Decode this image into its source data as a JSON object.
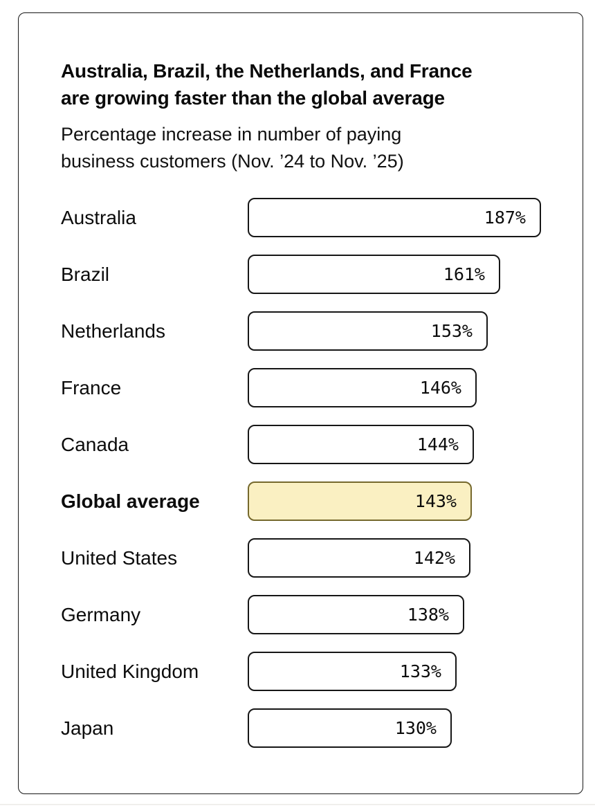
{
  "header": {
    "title": "Australia, Brazil, the Netherlands, and France are growing faster than the global average",
    "title_lines": [
      "Australia, Brazil, the Netherlands, and France",
      "are growing faster than the global average"
    ],
    "subtitle": "Percentage increase in number of paying business customers (Nov. ’24 to Nov. ’25)",
    "subtitle_lines": [
      "Percentage increase in number of paying",
      "business customers (Nov. ’24 to Nov. ’25)"
    ]
  },
  "chart_data": {
    "type": "bar",
    "orientation": "horizontal",
    "title": "Australia, Brazil, the Netherlands, and France are growing faster than the global average",
    "subtitle": "Percentage increase in number of paying business customers (Nov. ’24 to Nov. ’25)",
    "categories": [
      "Australia",
      "Brazil",
      "Netherlands",
      "France",
      "Canada",
      "Global average",
      "United States",
      "Germany",
      "United Kingdom",
      "Japan"
    ],
    "values": [
      187,
      161,
      153,
      146,
      144,
      143,
      142,
      138,
      133,
      130
    ],
    "unit": "%",
    "value_labels": [
      "187%",
      "161%",
      "153%",
      "146%",
      "144%",
      "143%",
      "142%",
      "138%",
      "133%",
      "130%"
    ],
    "highlight_category": "Global average",
    "xlim": [
      0,
      187
    ],
    "grid": false,
    "legend": "none",
    "colors": {
      "bar_fill": "#ffffff",
      "bar_border": "#161616",
      "highlight_fill": "#faf0c2",
      "highlight_border": "#75682c",
      "text": "#0c0c0c"
    }
  },
  "rows": [
    {
      "label": "Australia",
      "value": 187,
      "display": "187%",
      "highlighted": false
    },
    {
      "label": "Brazil",
      "value": 161,
      "display": "161%",
      "highlighted": false
    },
    {
      "label": "Netherlands",
      "value": 153,
      "display": "153%",
      "highlighted": false
    },
    {
      "label": "France",
      "value": 146,
      "display": "146%",
      "highlighted": false
    },
    {
      "label": "Canada",
      "value": 144,
      "display": "144%",
      "highlighted": false
    },
    {
      "label": "Global average",
      "value": 143,
      "display": "143%",
      "highlighted": true
    },
    {
      "label": "United States",
      "value": 142,
      "display": "142%",
      "highlighted": false
    },
    {
      "label": "Germany",
      "value": 138,
      "display": "138%",
      "highlighted": false
    },
    {
      "label": "United Kingdom",
      "value": 133,
      "display": "133%",
      "highlighted": false
    },
    {
      "label": "Japan",
      "value": 130,
      "display": "130%",
      "highlighted": false
    }
  ]
}
